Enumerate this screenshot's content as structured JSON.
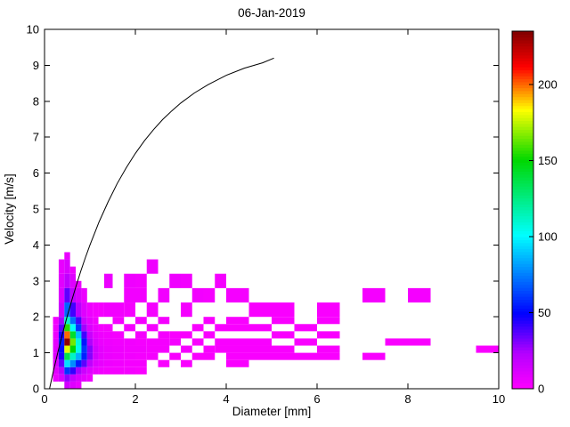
{
  "title": "06-Jan-2019",
  "chart_data": {
    "type": "heatmap",
    "title": "06-Jan-2019",
    "xlabel": "Diameter [mm]",
    "ylabel": "Velocity [m/s]",
    "xlim": [
      0,
      10
    ],
    "ylim": [
      0,
      10
    ],
    "xticks": [
      0,
      2,
      4,
      6,
      8,
      10
    ],
    "xtick_labels": [
      "0",
      "2",
      "4",
      "6",
      "8",
      "10"
    ],
    "yticks": [
      0,
      1,
      2,
      3,
      4,
      5,
      6,
      7,
      8,
      9,
      10
    ],
    "ytick_labels": [
      "0",
      "1",
      "2",
      "3",
      "4",
      "5",
      "6",
      "7",
      "8",
      "9",
      "10"
    ],
    "grid": false,
    "colorbar": {
      "min": 0,
      "max": 235,
      "ticks": [
        0,
        50,
        100,
        150,
        200
      ],
      "tick_labels": [
        "0",
        "50",
        "100",
        "150",
        "200"
      ],
      "position": "right"
    },
    "colormap_stops": [
      {
        "t": 0.0,
        "color": "#ff00ff"
      },
      {
        "t": 0.1,
        "color": "#b400ff"
      },
      {
        "t": 0.21,
        "color": "#0000ff"
      },
      {
        "t": 0.43,
        "color": "#00ffff"
      },
      {
        "t": 0.64,
        "color": "#00d800"
      },
      {
        "t": 0.78,
        "color": "#ffff00"
      },
      {
        "t": 0.9,
        "color": "#ff0000"
      },
      {
        "t": 1.0,
        "color": "#800000"
      }
    ],
    "curve": {
      "name": "terminal-velocity-curve",
      "color": "#000000",
      "x": [
        0.11,
        0.2,
        0.3,
        0.4,
        0.5,
        0.6,
        0.7,
        0.8,
        0.9,
        1.0,
        1.2,
        1.4,
        1.6,
        1.8,
        2.0,
        2.2,
        2.4,
        2.6,
        2.8,
        3.0,
        3.3,
        3.6,
        4.0,
        4.4,
        4.8,
        5.05
      ],
      "y": [
        0.0,
        0.52,
        1.05,
        1.55,
        2.02,
        2.46,
        2.88,
        3.28,
        3.65,
        4.0,
        4.64,
        5.2,
        5.71,
        6.15,
        6.55,
        6.9,
        7.21,
        7.49,
        7.73,
        7.95,
        8.23,
        8.46,
        8.72,
        8.92,
        9.07,
        9.2
      ]
    },
    "cells": [
      [
        0.187,
        0.312,
        0.2,
        0.4,
        6
      ],
      [
        0.187,
        0.312,
        0.4,
        0.6,
        9
      ],
      [
        0.187,
        0.312,
        0.6,
        0.8,
        11
      ],
      [
        0.187,
        0.312,
        0.8,
        1.0,
        11
      ],
      [
        0.187,
        0.312,
        1.0,
        1.2,
        9
      ],
      [
        0.187,
        0.312,
        1.2,
        1.4,
        8
      ],
      [
        0.187,
        0.312,
        1.4,
        1.6,
        6
      ],
      [
        0.187,
        0.312,
        1.6,
        1.8,
        5
      ],
      [
        0.187,
        0.312,
        1.8,
        2.0,
        4
      ],
      [
        0.312,
        0.437,
        0.2,
        0.4,
        12
      ],
      [
        0.312,
        0.437,
        0.4,
        0.6,
        22
      ],
      [
        0.312,
        0.437,
        0.6,
        0.8,
        35
      ],
      [
        0.312,
        0.437,
        0.8,
        1.0,
        45
      ],
      [
        0.312,
        0.437,
        1.0,
        1.2,
        52
      ],
      [
        0.312,
        0.437,
        1.2,
        1.4,
        55
      ],
      [
        0.312,
        0.437,
        1.4,
        1.6,
        46
      ],
      [
        0.312,
        0.437,
        1.6,
        1.8,
        36
      ],
      [
        0.312,
        0.437,
        1.8,
        2.0,
        26
      ],
      [
        0.312,
        0.437,
        2.0,
        2.4,
        16
      ],
      [
        0.312,
        0.437,
        2.4,
        2.8,
        11
      ],
      [
        0.312,
        0.437,
        2.8,
        3.2,
        9
      ],
      [
        0.312,
        0.437,
        3.2,
        3.6,
        7
      ],
      [
        0.437,
        0.562,
        0.0,
        0.2,
        14
      ],
      [
        0.437,
        0.562,
        0.2,
        0.4,
        28
      ],
      [
        0.437,
        0.562,
        0.4,
        0.6,
        60
      ],
      [
        0.437,
        0.562,
        0.6,
        0.8,
        95
      ],
      [
        0.437,
        0.562,
        0.8,
        1.0,
        135
      ],
      [
        0.437,
        0.562,
        1.0,
        1.2,
        180
      ],
      [
        0.437,
        0.562,
        1.2,
        1.4,
        232
      ],
      [
        0.437,
        0.562,
        1.4,
        1.6,
        200
      ],
      [
        0.437,
        0.562,
        1.6,
        1.8,
        155
      ],
      [
        0.437,
        0.562,
        1.8,
        2.0,
        112
      ],
      [
        0.437,
        0.562,
        2.0,
        2.4,
        70
      ],
      [
        0.437,
        0.562,
        2.4,
        2.8,
        36
      ],
      [
        0.437,
        0.562,
        2.8,
        3.2,
        20
      ],
      [
        0.437,
        0.562,
        3.2,
        3.6,
        12
      ],
      [
        0.437,
        0.562,
        3.6,
        3.8,
        7
      ],
      [
        0.562,
        0.687,
        0.0,
        0.2,
        10
      ],
      [
        0.562,
        0.687,
        0.2,
        0.4,
        18
      ],
      [
        0.562,
        0.687,
        0.4,
        0.6,
        42
      ],
      [
        0.562,
        0.687,
        0.6,
        0.8,
        78
      ],
      [
        0.562,
        0.687,
        0.8,
        1.0,
        112
      ],
      [
        0.562,
        0.687,
        1.0,
        1.2,
        150
      ],
      [
        0.562,
        0.687,
        1.2,
        1.4,
        165
      ],
      [
        0.562,
        0.687,
        1.4,
        1.6,
        142
      ],
      [
        0.562,
        0.687,
        1.6,
        1.8,
        102
      ],
      [
        0.562,
        0.687,
        1.8,
        2.0,
        72
      ],
      [
        0.562,
        0.687,
        2.0,
        2.4,
        40
      ],
      [
        0.562,
        0.687,
        2.4,
        2.8,
        20
      ],
      [
        0.562,
        0.687,
        2.8,
        3.2,
        10
      ],
      [
        0.562,
        0.687,
        3.2,
        3.4,
        5
      ],
      [
        0.687,
        0.812,
        0.0,
        0.2,
        6
      ],
      [
        0.687,
        0.812,
        0.2,
        0.4,
        12
      ],
      [
        0.687,
        0.812,
        0.4,
        0.6,
        26
      ],
      [
        0.687,
        0.812,
        0.6,
        0.8,
        55
      ],
      [
        0.687,
        0.812,
        0.8,
        1.0,
        85
      ],
      [
        0.687,
        0.812,
        1.0,
        1.2,
        105
      ],
      [
        0.687,
        0.812,
        1.2,
        1.4,
        108
      ],
      [
        0.687,
        0.812,
        1.4,
        1.6,
        88
      ],
      [
        0.687,
        0.812,
        1.6,
        1.8,
        60
      ],
      [
        0.687,
        0.812,
        1.8,
        2.0,
        40
      ],
      [
        0.687,
        0.812,
        2.0,
        2.4,
        22
      ],
      [
        0.687,
        0.812,
        2.4,
        2.8,
        12
      ],
      [
        0.687,
        0.812,
        2.8,
        3.0,
        6
      ],
      [
        0.812,
        0.937,
        0.2,
        0.4,
        8
      ],
      [
        0.812,
        0.937,
        0.4,
        0.6,
        16
      ],
      [
        0.812,
        0.937,
        0.6,
        0.8,
        36
      ],
      [
        0.812,
        0.937,
        0.8,
        1.0,
        56
      ],
      [
        0.812,
        0.937,
        1.0,
        1.2,
        60
      ],
      [
        0.812,
        0.937,
        1.2,
        1.4,
        54
      ],
      [
        0.812,
        0.937,
        1.4,
        1.6,
        40
      ],
      [
        0.812,
        0.937,
        1.6,
        1.8,
        26
      ],
      [
        0.812,
        0.937,
        1.8,
        2.0,
        16
      ],
      [
        0.812,
        0.937,
        2.0,
        2.4,
        10
      ],
      [
        0.812,
        0.937,
        2.4,
        2.8,
        6
      ],
      [
        0.937,
        1.062,
        0.2,
        0.4,
        5
      ],
      [
        0.937,
        1.062,
        0.4,
        0.6,
        10
      ],
      [
        0.937,
        1.062,
        0.6,
        0.8,
        20
      ],
      [
        0.937,
        1.062,
        0.8,
        1.0,
        30
      ],
      [
        0.937,
        1.062,
        1.0,
        1.2,
        30
      ],
      [
        0.937,
        1.062,
        1.2,
        1.4,
        24
      ],
      [
        0.937,
        1.062,
        1.4,
        1.6,
        17
      ],
      [
        0.937,
        1.062,
        1.6,
        1.8,
        11
      ],
      [
        0.937,
        1.062,
        1.8,
        2.0,
        8
      ],
      [
        0.937,
        1.062,
        2.0,
        2.4,
        5
      ],
      [
        1.062,
        1.187,
        0.4,
        0.6,
        6
      ],
      [
        1.062,
        1.187,
        0.6,
        0.8,
        10
      ],
      [
        1.062,
        1.187,
        0.8,
        1.0,
        14
      ],
      [
        1.062,
        1.187,
        1.0,
        1.2,
        14
      ],
      [
        1.062,
        1.187,
        1.2,
        1.4,
        11
      ],
      [
        1.062,
        1.187,
        1.4,
        1.6,
        8
      ],
      [
        1.062,
        1.187,
        1.6,
        1.8,
        6
      ],
      [
        1.062,
        1.187,
        1.8,
        2.0,
        4
      ],
      [
        1.062,
        1.187,
        2.0,
        2.4,
        3
      ],
      [
        1.187,
        1.312,
        0.4,
        0.6,
        4
      ],
      [
        1.187,
        1.312,
        0.6,
        0.8,
        7
      ],
      [
        1.187,
        1.312,
        0.8,
        1.0,
        8
      ],
      [
        1.187,
        1.312,
        1.0,
        1.2,
        8
      ],
      [
        1.187,
        1.312,
        1.2,
        1.4,
        6
      ],
      [
        1.187,
        1.312,
        1.4,
        1.6,
        5
      ],
      [
        1.187,
        1.312,
        1.6,
        1.8,
        3
      ],
      [
        1.187,
        1.312,
        2.0,
        2.4,
        3
      ],
      [
        1.312,
        1.5,
        0.4,
        0.6,
        3
      ],
      [
        1.312,
        1.5,
        0.6,
        0.8,
        5
      ],
      [
        1.312,
        1.5,
        0.8,
        1.0,
        6
      ],
      [
        1.312,
        1.5,
        1.0,
        1.2,
        6
      ],
      [
        1.312,
        1.5,
        1.2,
        1.4,
        5
      ],
      [
        1.312,
        1.5,
        1.4,
        1.6,
        4
      ],
      [
        1.312,
        1.5,
        1.6,
        1.8,
        3
      ],
      [
        1.312,
        1.5,
        2.0,
        2.4,
        4
      ],
      [
        1.312,
        1.5,
        2.8,
        3.2,
        6
      ],
      [
        1.5,
        1.75,
        0.4,
        0.6,
        3
      ],
      [
        1.5,
        1.75,
        0.6,
        0.8,
        4
      ],
      [
        1.5,
        1.75,
        0.8,
        1.0,
        5
      ],
      [
        1.5,
        1.75,
        1.0,
        1.2,
        5
      ],
      [
        1.5,
        1.75,
        1.2,
        1.4,
        4
      ],
      [
        1.5,
        1.75,
        1.4,
        1.6,
        3
      ],
      [
        1.5,
        1.75,
        1.8,
        2.0,
        3
      ],
      [
        1.5,
        1.75,
        2.0,
        2.4,
        4
      ],
      [
        1.75,
        2.0,
        0.4,
        0.6,
        3
      ],
      [
        1.75,
        2.0,
        0.6,
        0.8,
        3
      ],
      [
        1.75,
        2.0,
        0.8,
        1.0,
        4
      ],
      [
        1.75,
        2.0,
        1.0,
        1.2,
        4
      ],
      [
        1.75,
        2.0,
        1.2,
        1.4,
        4
      ],
      [
        1.75,
        2.0,
        1.6,
        1.8,
        3
      ],
      [
        1.75,
        2.0,
        2.0,
        2.4,
        3
      ],
      [
        1.75,
        2.0,
        2.4,
        2.8,
        4
      ],
      [
        1.75,
        2.0,
        2.8,
        3.2,
        5
      ],
      [
        2.0,
        2.25,
        0.4,
        0.6,
        2
      ],
      [
        2.0,
        2.25,
        0.6,
        0.8,
        3
      ],
      [
        2.0,
        2.25,
        0.8,
        1.0,
        3
      ],
      [
        2.0,
        2.25,
        1.0,
        1.2,
        4
      ],
      [
        2.0,
        2.25,
        1.2,
        1.4,
        3
      ],
      [
        2.0,
        2.25,
        1.4,
        1.6,
        3
      ],
      [
        2.0,
        2.25,
        1.8,
        2.0,
        3
      ],
      [
        2.0,
        2.25,
        2.4,
        2.8,
        4
      ],
      [
        2.0,
        2.25,
        2.8,
        3.2,
        4
      ],
      [
        2.25,
        2.5,
        0.8,
        1.0,
        3
      ],
      [
        2.25,
        2.5,
        1.0,
        1.2,
        3
      ],
      [
        2.25,
        2.5,
        1.2,
        1.4,
        3
      ],
      [
        2.25,
        2.5,
        1.6,
        1.8,
        3
      ],
      [
        2.25,
        2.5,
        2.0,
        2.4,
        3
      ],
      [
        2.25,
        2.5,
        3.2,
        3.6,
        5
      ],
      [
        2.5,
        2.75,
        0.6,
        0.8,
        2
      ],
      [
        2.5,
        2.75,
        1.0,
        1.2,
        3
      ],
      [
        2.5,
        2.75,
        1.2,
        1.4,
        3
      ],
      [
        2.5,
        2.75,
        1.4,
        1.6,
        3
      ],
      [
        2.5,
        2.75,
        1.8,
        2.0,
        3
      ],
      [
        2.5,
        2.75,
        2.4,
        2.8,
        4
      ],
      [
        2.75,
        3.0,
        0.8,
        1.0,
        2
      ],
      [
        2.75,
        3.0,
        1.2,
        1.4,
        3
      ],
      [
        2.75,
        3.0,
        1.4,
        1.6,
        2
      ],
      [
        2.75,
        3.0,
        2.8,
        3.2,
        5
      ],
      [
        3.0,
        3.25,
        0.6,
        0.8,
        2
      ],
      [
        3.0,
        3.25,
        1.0,
        1.2,
        3
      ],
      [
        3.0,
        3.25,
        1.4,
        1.6,
        2
      ],
      [
        3.0,
        3.25,
        2.0,
        2.4,
        3
      ],
      [
        3.0,
        3.25,
        2.8,
        3.2,
        4
      ],
      [
        3.25,
        3.5,
        0.8,
        1.0,
        2
      ],
      [
        3.25,
        3.5,
        1.2,
        1.4,
        2
      ],
      [
        3.25,
        3.5,
        1.6,
        1.8,
        2
      ],
      [
        3.25,
        3.5,
        2.4,
        2.8,
        4
      ],
      [
        3.5,
        3.75,
        0.8,
        1.0,
        2
      ],
      [
        3.5,
        3.75,
        1.0,
        1.2,
        2
      ],
      [
        3.5,
        3.75,
        1.4,
        1.6,
        2
      ],
      [
        3.5,
        3.75,
        1.8,
        2.0,
        2
      ],
      [
        3.5,
        3.75,
        2.4,
        2.8,
        3
      ],
      [
        3.75,
        4.0,
        1.0,
        1.2,
        2
      ],
      [
        3.75,
        4.0,
        1.2,
        1.4,
        2
      ],
      [
        3.75,
        4.0,
        1.6,
        1.8,
        2
      ],
      [
        3.75,
        4.0,
        2.8,
        3.2,
        3
      ],
      [
        4.0,
        4.5,
        0.6,
        0.8,
        2
      ],
      [
        4.0,
        4.5,
        0.8,
        1.0,
        2
      ],
      [
        4.0,
        4.5,
        1.0,
        1.2,
        2
      ],
      [
        4.0,
        4.5,
        1.2,
        1.4,
        2
      ],
      [
        4.0,
        4.5,
        1.6,
        1.8,
        2
      ],
      [
        4.0,
        4.5,
        1.8,
        2.0,
        2
      ],
      [
        4.0,
        4.5,
        2.4,
        2.8,
        3
      ],
      [
        4.5,
        5.0,
        0.8,
        1.0,
        2
      ],
      [
        4.5,
        5.0,
        1.0,
        1.2,
        2
      ],
      [
        4.5,
        5.0,
        1.2,
        1.4,
        2
      ],
      [
        4.5,
        5.0,
        1.6,
        1.8,
        2
      ],
      [
        4.5,
        5.0,
        2.0,
        2.4,
        2
      ],
      [
        5.0,
        5.5,
        0.8,
        1.0,
        2
      ],
      [
        5.0,
        5.5,
        1.0,
        1.2,
        2
      ],
      [
        5.0,
        5.5,
        1.4,
        1.6,
        2
      ],
      [
        5.0,
        5.5,
        1.8,
        2.0,
        2
      ],
      [
        5.0,
        5.5,
        2.0,
        2.4,
        2
      ],
      [
        5.5,
        6.0,
        0.8,
        1.0,
        2
      ],
      [
        5.5,
        6.0,
        1.2,
        1.4,
        2
      ],
      [
        5.5,
        6.0,
        1.6,
        1.8,
        2
      ],
      [
        6.0,
        6.5,
        0.8,
        1.0,
        2
      ],
      [
        6.0,
        6.5,
        1.0,
        1.2,
        2
      ],
      [
        6.0,
        6.5,
        1.4,
        1.6,
        2
      ],
      [
        6.0,
        6.5,
        1.8,
        2.0,
        2
      ],
      [
        6.0,
        6.5,
        2.0,
        2.4,
        2
      ],
      [
        7.0,
        7.5,
        0.8,
        1.0,
        2
      ],
      [
        7.0,
        7.5,
        2.4,
        2.8,
        3
      ],
      [
        7.5,
        8.0,
        1.2,
        1.4,
        2
      ],
      [
        8.0,
        8.5,
        1.2,
        1.4,
        2
      ],
      [
        8.0,
        8.5,
        2.4,
        2.8,
        3
      ],
      [
        9.5,
        10.0,
        1.0,
        1.2,
        2
      ]
    ]
  }
}
